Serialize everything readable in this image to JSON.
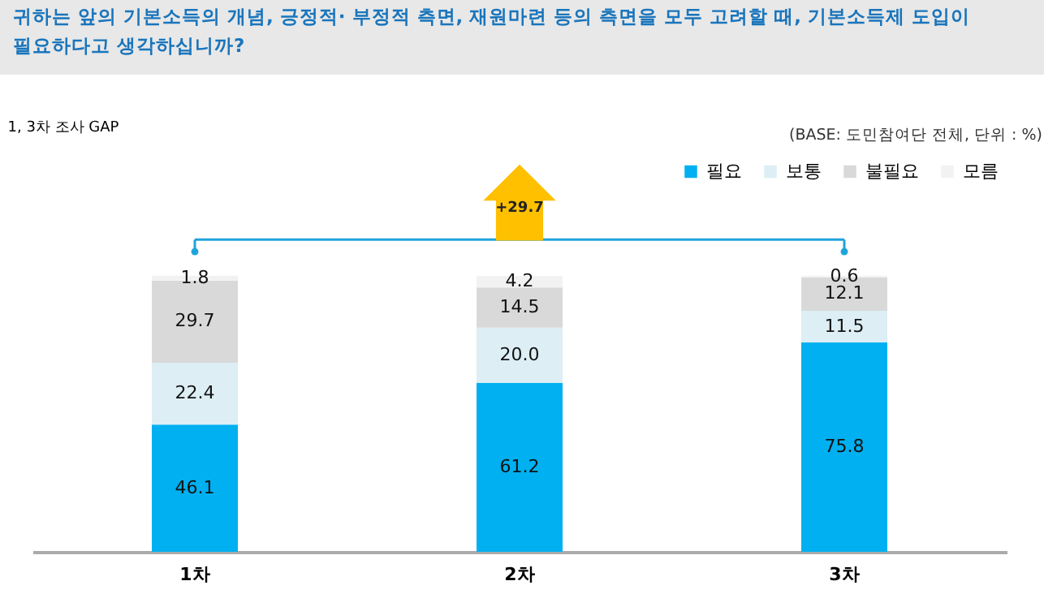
{
  "chart_data": {
    "type": "bar",
    "stacked": true,
    "title": "귀하는 앞의 기본소득의 개념, 긍정적· 부정적 측면, 재원마련 등의 측면을 모두 고려할 때, 기본소득제  도입이 필요하다고 생각하십니까?",
    "categories": [
      "1차",
      "2차",
      "3차"
    ],
    "series": [
      {
        "name": "필요",
        "color": "#00b0f0",
        "values": [
          46.1,
          61.2,
          75.8
        ],
        "value_labels": [
          "46.1",
          "61.2",
          "75.8"
        ]
      },
      {
        "name": "보통",
        "color": "#ddeef5",
        "values": [
          22.4,
          20.0,
          11.5
        ],
        "value_labels": [
          "22.4",
          "20.0",
          "11.5"
        ]
      },
      {
        "name": "불필요",
        "color": "#d9d9d9",
        "values": [
          29.7,
          14.5,
          12.1
        ],
        "value_labels": [
          "29.7",
          "14.5",
          "12.1"
        ]
      },
      {
        "name": "모름",
        "color": "#f2f2f2",
        "values": [
          1.8,
          4.2,
          0.6
        ],
        "value_labels": [
          "1.8",
          "4.2",
          "0.6"
        ]
      }
    ],
    "tick_labels": "x",
    "legend": "top right",
    "annotations": [
      "1, 3차 조사 GAP",
      "(BASE: 도민참여단 전체, 단위 : %)",
      "+29.7"
    ]
  }
}
